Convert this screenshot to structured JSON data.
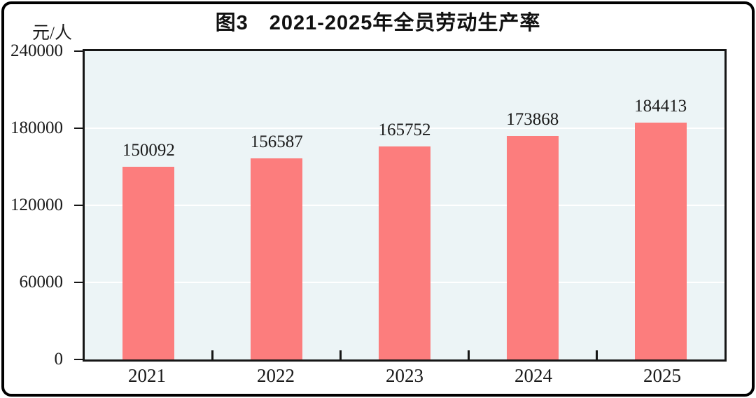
{
  "figure": {
    "title": "图3　2021-2025年全员劳动生产率",
    "unit_label": "元/人"
  },
  "chart_data": {
    "type": "bar",
    "title": "图3　2021-2025年全员劳动生产率",
    "categories": [
      "2021",
      "2022",
      "2023",
      "2024",
      "2025"
    ],
    "values": [
      150092,
      156587,
      165752,
      173868,
      184413
    ],
    "xlabel": "",
    "ylabel": "元/人",
    "ylim": [
      0,
      240000
    ],
    "yticks": [
      0,
      60000,
      120000,
      180000,
      240000
    ],
    "grid": "horizontal",
    "legend_position": "none",
    "colors": {
      "bar": "#FC7D7D",
      "plot_bg": "#ECF4F6",
      "gridline": "#FFFFFF",
      "axis": "#161616",
      "text": "#1A1A1A"
    }
  }
}
